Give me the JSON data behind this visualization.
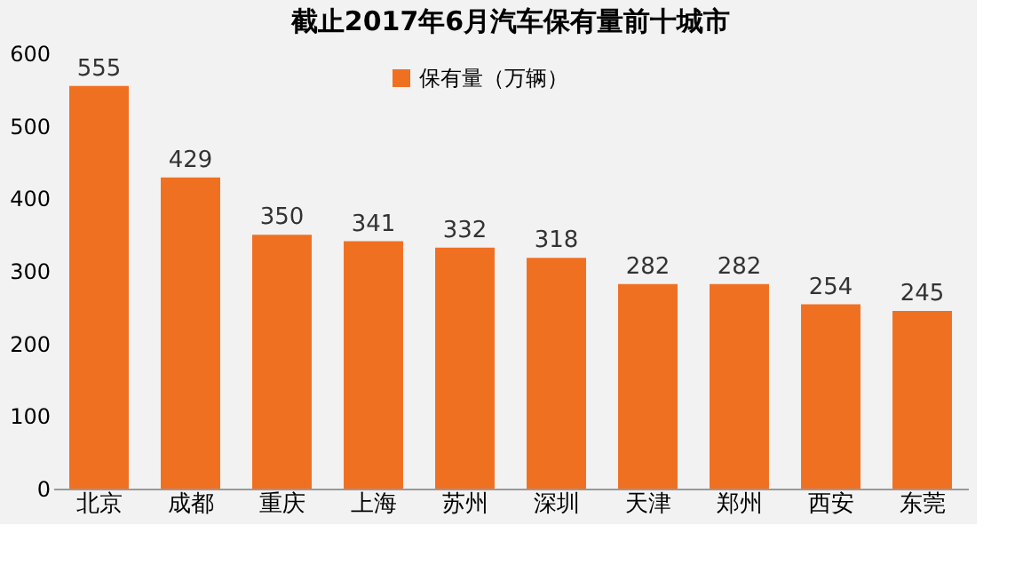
{
  "chart_data": {
    "type": "bar",
    "title": "截止2017年6月汽车保有量前十城市",
    "categories": [
      "北京",
      "成都",
      "重庆",
      "上海",
      "苏州",
      "深圳",
      "天津",
      "郑州",
      "西安",
      "东莞"
    ],
    "series": [
      {
        "name": "保有量（万辆）",
        "color": "#f07022",
        "values": [
          555,
          429,
          350,
          341,
          332,
          318,
          282,
          282,
          254,
          245
        ]
      }
    ],
    "ylim": [
      0,
      600
    ],
    "yticks": [
      0,
      100,
      200,
      300,
      400,
      500,
      600
    ],
    "grid": false,
    "legend": "top",
    "data_labels": true
  }
}
